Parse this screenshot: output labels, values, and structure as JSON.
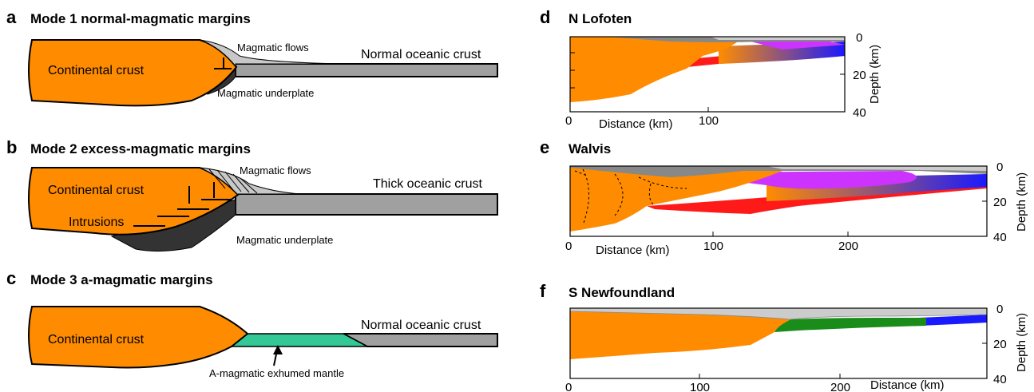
{
  "panels": {
    "a": {
      "letter": "a",
      "title": "Mode 1 normal-magmatic margins",
      "continental": "Continental crust",
      "flows": "Magmatic flows",
      "oceanic": "Normal oceanic crust",
      "underplate": "Magmatic underplate"
    },
    "b": {
      "letter": "b",
      "title": "Mode 2 excess-magmatic margins",
      "continental": "Continental crust",
      "flows": "Magmatic flows",
      "oceanic": "Thick oceanic crust",
      "intrusions": "Intrusions",
      "underplate": "Magmatic underplate"
    },
    "c": {
      "letter": "c",
      "title": "Mode 3 a-magmatic margins",
      "continental": "Continental crust",
      "oceanic": "Normal oceanic crust",
      "mantle": "A-magmatic exhumed mantle"
    },
    "d": {
      "letter": "d",
      "title": "N Lofoten",
      "xlabel": "Distance (km)",
      "ylabel": "Depth (km)",
      "xticks": [
        "0",
        "100"
      ],
      "yticks": [
        "0",
        "20",
        "40"
      ]
    },
    "e": {
      "letter": "e",
      "title": "Walvis",
      "xlabel": "Distance (km)",
      "ylabel": "Depth (km)",
      "xticks": [
        "0",
        "100",
        "200"
      ],
      "yticks": [
        "0",
        "20",
        "40"
      ]
    },
    "f": {
      "letter": "f",
      "title": "S Newfoundland",
      "xlabel": "Distance (km)",
      "ylabel": "Depth (km)",
      "xticks": [
        "0",
        "100",
        "200"
      ],
      "yticks": [
        "0",
        "20",
        "40"
      ]
    }
  },
  "colors": {
    "continental": "#ff8c00",
    "oceanic": "#a0a0a0",
    "flows": "#c8c8c8",
    "underplate": "#333333",
    "mantle": "#33c896",
    "red": "#ff1a1a",
    "blue": "#1a1aff",
    "magenta": "#cc33ff",
    "green": "#1a8c1a",
    "sediment": "#cccccc",
    "darkgray": "#555555"
  }
}
